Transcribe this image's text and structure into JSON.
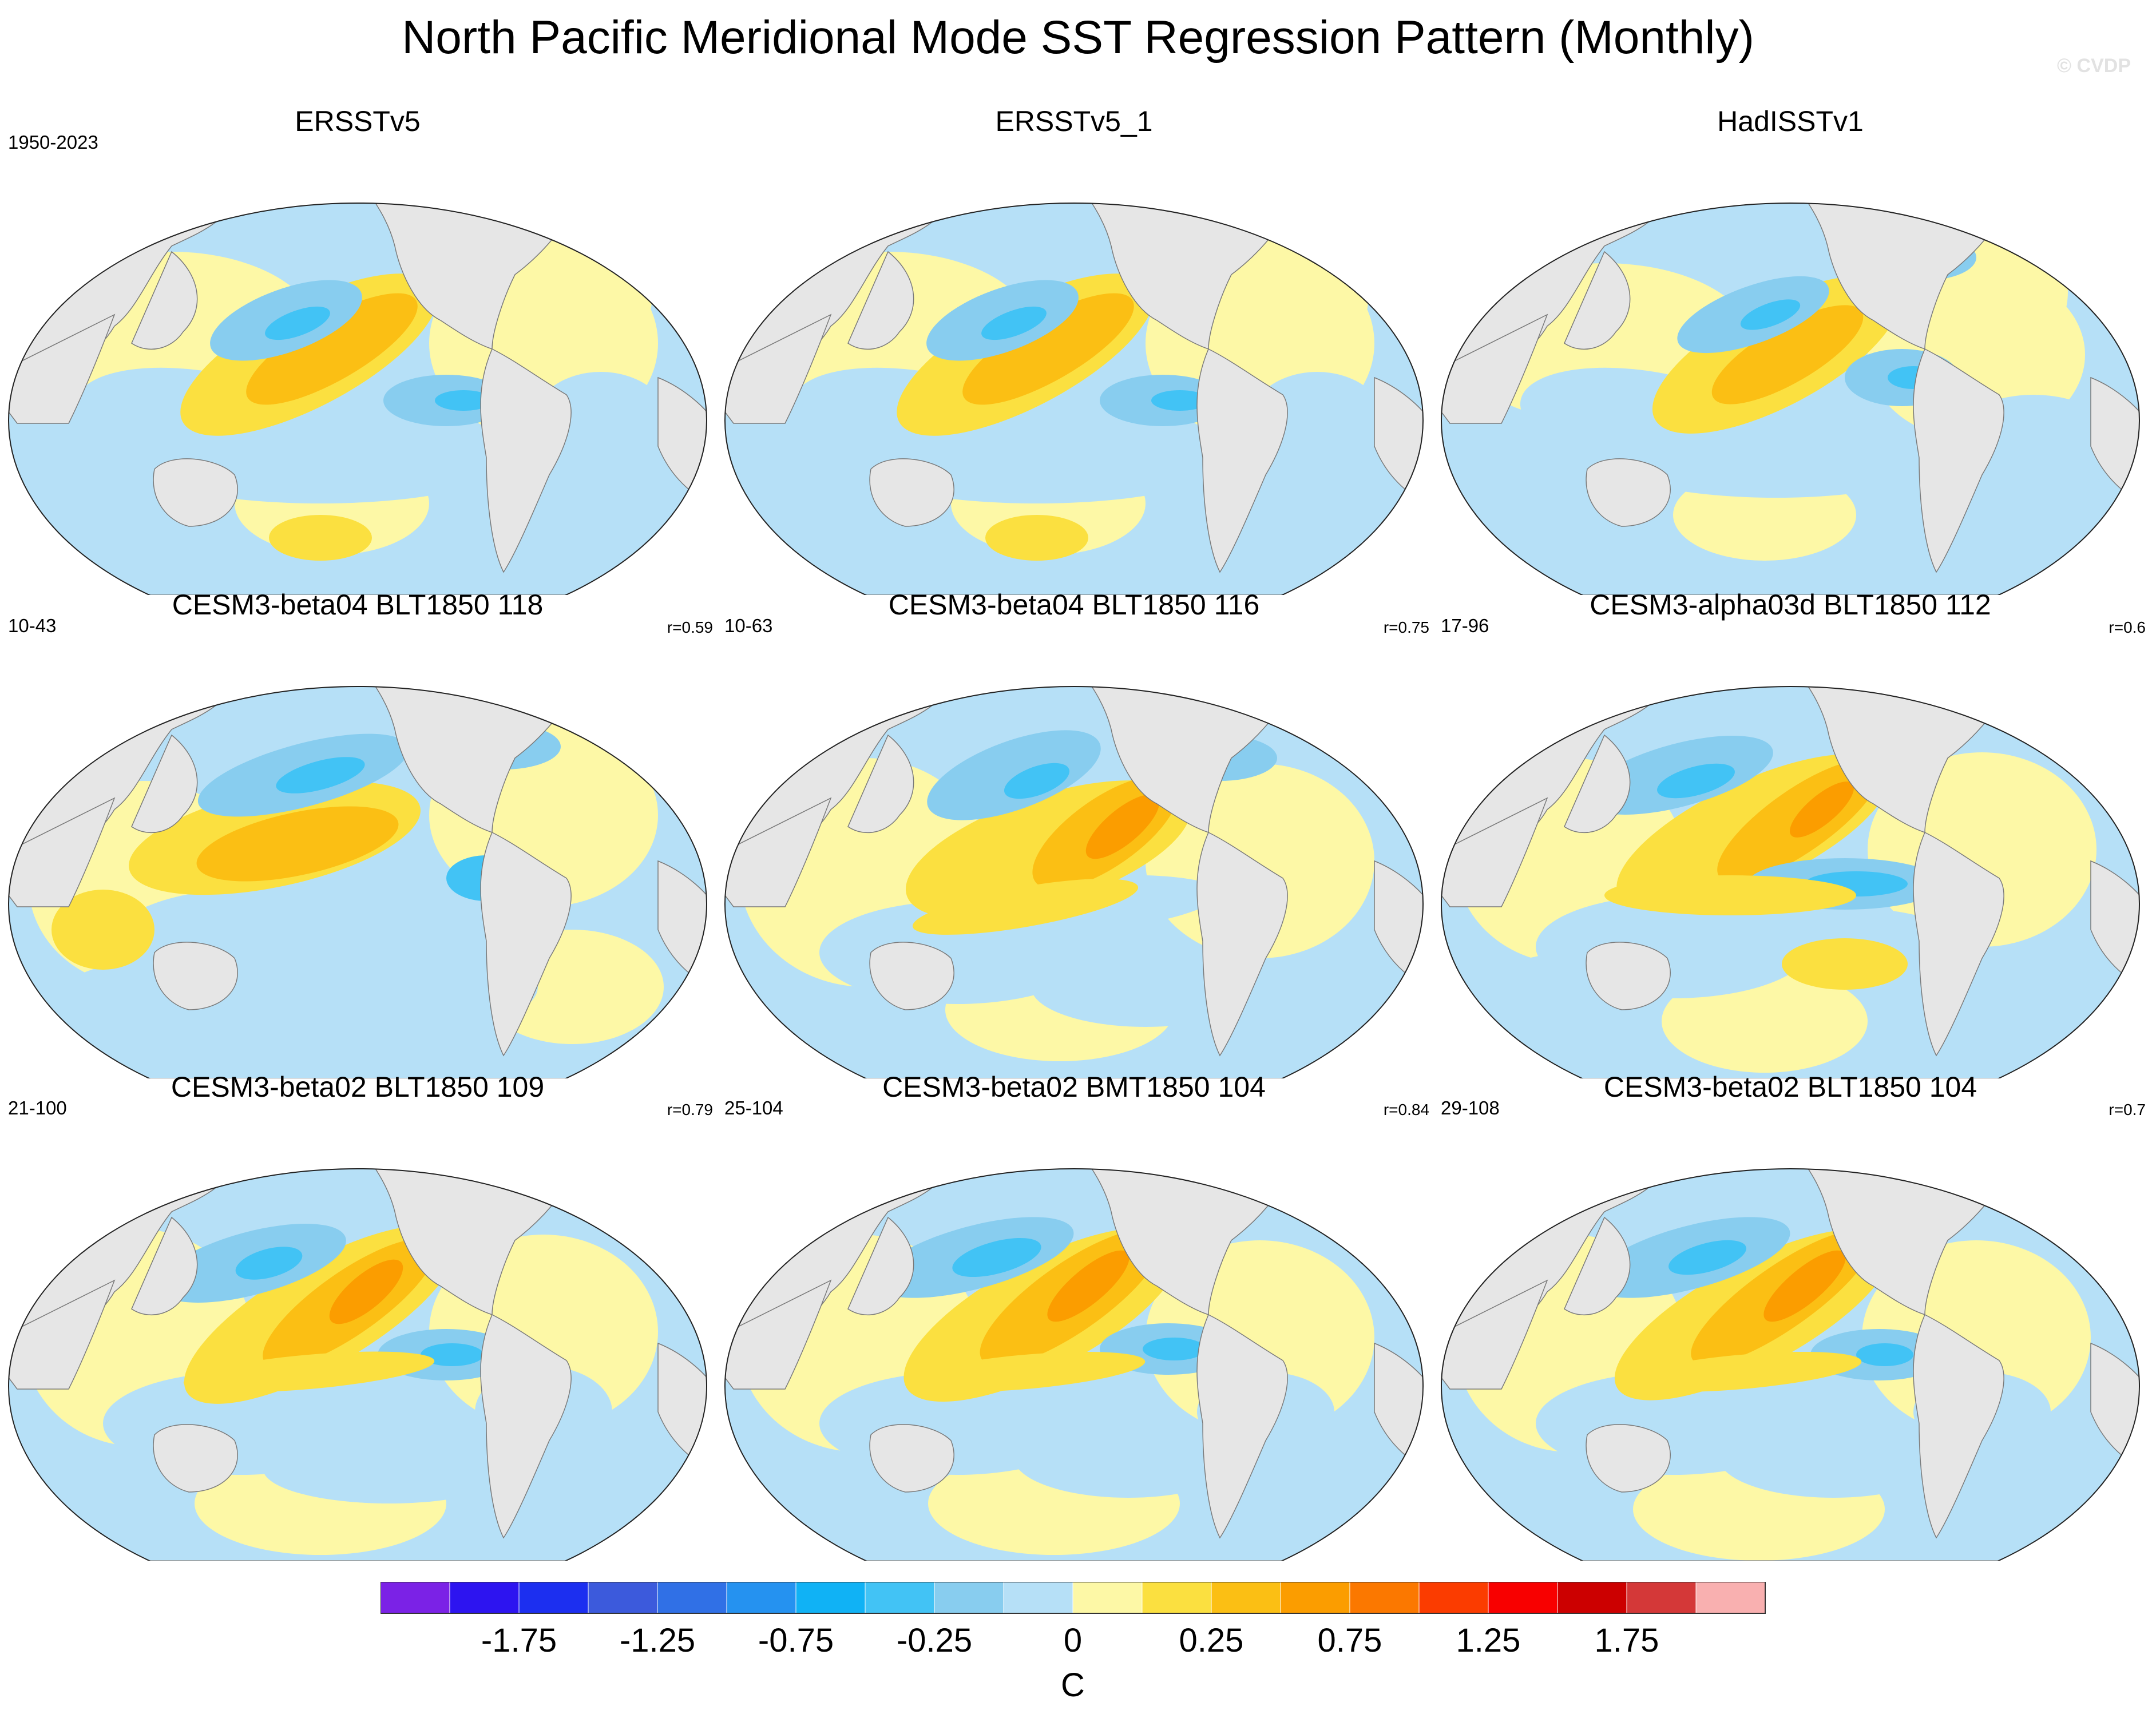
{
  "title": "North Pacific Meridional Mode SST Regression Pattern (Monthly)",
  "watermark": "© CVDP",
  "panels": [
    {
      "name": "ERSSTv5",
      "years": "1950-2023",
      "r": "",
      "variant": 0
    },
    {
      "name": "ERSSTv5_1",
      "years": "",
      "r": "",
      "variant": 0
    },
    {
      "name": "HadISSTv1",
      "years": "",
      "r": "",
      "variant": 1
    },
    {
      "name": "CESM3-beta04 BLT1850 118",
      "years": "10-43",
      "r": "r=0.59",
      "variant": 2
    },
    {
      "name": "CESM3-beta04 BLT1850 116",
      "years": "10-63",
      "r": "r=0.75",
      "variant": 3
    },
    {
      "name": "CESM3-alpha03d BLT1850 112",
      "years": "17-96",
      "r": "r=0.6",
      "variant": 4
    },
    {
      "name": "CESM3-beta02 BLT1850 109",
      "years": "21-100",
      "r": "r=0.79",
      "variant": 5
    },
    {
      "name": "CESM3-beta02 BMT1850 104",
      "years": "25-104",
      "r": "r=0.84",
      "variant": 6
    },
    {
      "name": "CESM3-beta02 BLT1850 104",
      "years": "29-108",
      "r": "r=0.7",
      "variant": 7
    }
  ],
  "chart_data": {
    "type": "heatmap",
    "title": "North Pacific Meridional Mode SST Regression Pattern (Monthly)",
    "projection": "Robinson (global)",
    "colorbar": {
      "label": "C",
      "tick_labels": [
        "-1.75",
        "-1.25",
        "-0.75",
        "-0.25",
        "0",
        "0.25",
        "0.75",
        "1.25",
        "1.75"
      ],
      "colors": [
        "#7b22e6",
        "#2d14f0",
        "#1c2ff0",
        "#3c5adc",
        "#3070e6",
        "#2592f0",
        "#10b2f5",
        "#42c3f5",
        "#88cdef",
        "#b6e0f7",
        "#fdf8a6",
        "#fbe040",
        "#fbbf14",
        "#fb9d00",
        "#fb7800",
        "#fb3c00",
        "#f80000",
        "#cc0000",
        "#d43838",
        "#f9b0b0"
      ]
    },
    "panels": [
      {
        "dataset": "ERSSTv5",
        "years": "1950-2023"
      },
      {
        "dataset": "ERSSTv5_1",
        "years": ""
      },
      {
        "dataset": "HadISSTv1",
        "years": ""
      },
      {
        "dataset": "CESM3-beta04 BLT1850 118",
        "years": "10-43",
        "pattern_correlation": 0.59
      },
      {
        "dataset": "CESM3-beta04 BLT1850 116",
        "years": "10-63",
        "pattern_correlation": 0.75
      },
      {
        "dataset": "CESM3-alpha03d BLT1850 112",
        "years": "17-96",
        "pattern_correlation": 0.6
      },
      {
        "dataset": "CESM3-beta02 BLT1850 109",
        "years": "21-100",
        "pattern_correlation": 0.79
      },
      {
        "dataset": "CESM3-beta02 BMT1850 104",
        "years": "25-104",
        "pattern_correlation": 0.84
      },
      {
        "dataset": "CESM3-beta02 BLT1850 104",
        "years": "29-108",
        "pattern_correlation": 0.7
      }
    ]
  }
}
